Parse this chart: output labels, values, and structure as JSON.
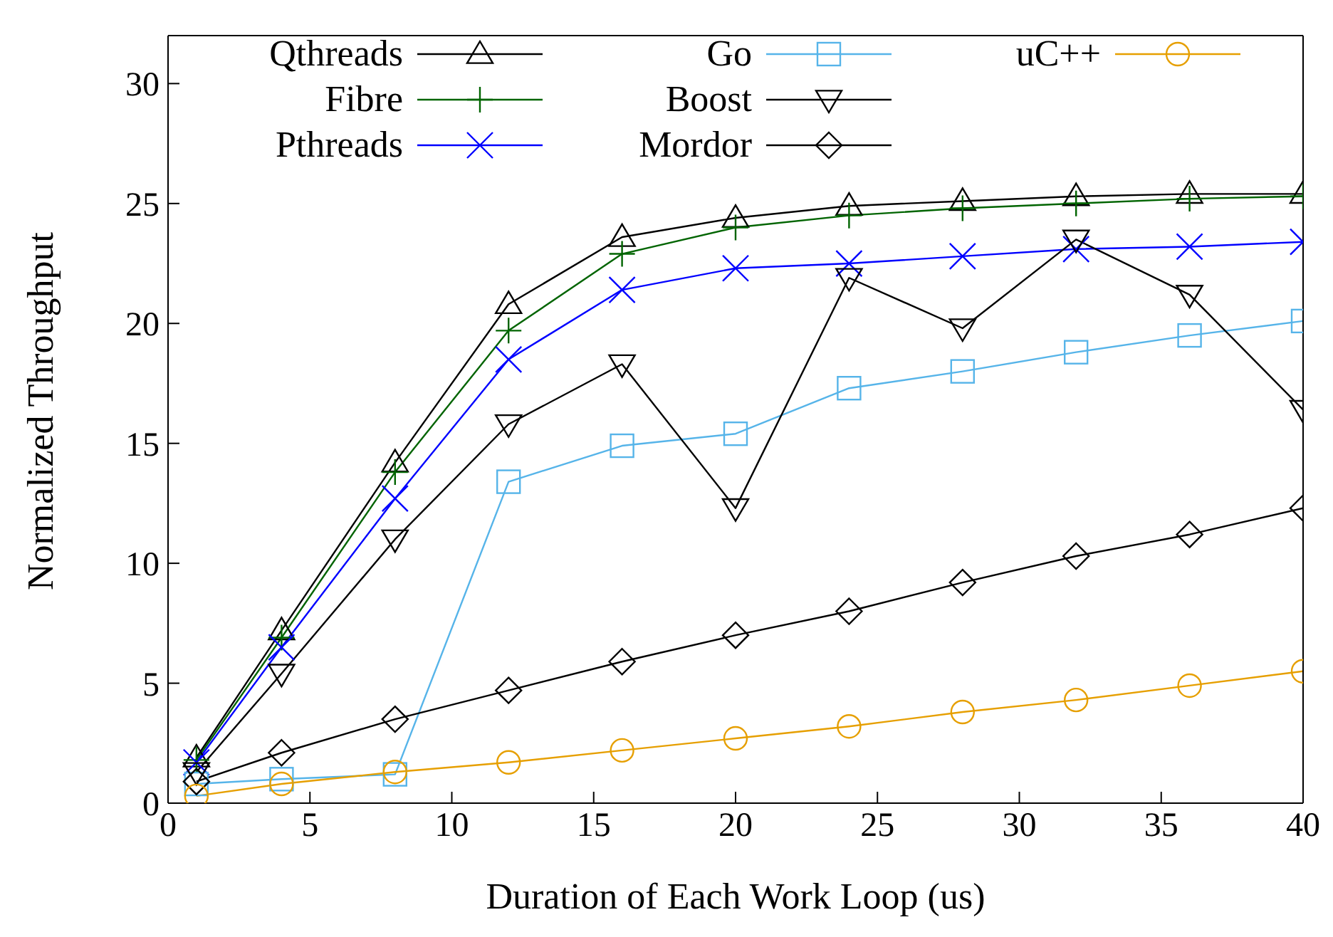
{
  "chart_data": {
    "type": "line",
    "xlabel": "Duration of Each Work Loop (us)",
    "ylabel": "Normalized Throughput",
    "x": [
      1,
      4,
      8,
      12,
      16,
      20,
      24,
      28,
      32,
      36,
      40
    ],
    "xlim": [
      0,
      40
    ],
    "xticks": [
      0,
      5,
      10,
      15,
      20,
      25,
      30,
      35,
      40
    ],
    "ylim": [
      0,
      32
    ],
    "yticks": [
      0,
      5,
      10,
      15,
      20,
      25,
      30
    ],
    "legend": "top",
    "series": [
      {
        "name": "Qthreads",
        "color": "#000000",
        "marker": "triangle",
        "values": [
          1.9,
          7.2,
          14.2,
          20.8,
          23.6,
          24.4,
          24.9,
          25.1,
          25.3,
          25.4,
          25.4
        ]
      },
      {
        "name": "Fibre",
        "color": "#006400",
        "marker": "plus",
        "values": [
          1.8,
          6.9,
          13.8,
          19.7,
          22.9,
          24.0,
          24.5,
          24.8,
          25.0,
          25.2,
          25.3
        ]
      },
      {
        "name": "Pthreads",
        "color": "#0000ff",
        "marker": "cross",
        "values": [
          1.7,
          6.5,
          12.7,
          18.5,
          21.4,
          22.3,
          22.5,
          22.8,
          23.1,
          23.2,
          23.4
        ]
      },
      {
        "name": "Go",
        "color": "#56b4e9",
        "marker": "square",
        "values": [
          0.8,
          1.0,
          1.2,
          13.4,
          14.9,
          15.4,
          17.3,
          18.0,
          18.8,
          19.5,
          20.1
        ]
      },
      {
        "name": "Boost",
        "color": "#000000",
        "marker": "triangle-down",
        "values": [
          1.3,
          5.4,
          11.0,
          15.8,
          18.3,
          12.3,
          21.9,
          19.8,
          23.5,
          21.2,
          16.4
        ]
      },
      {
        "name": "Mordor",
        "color": "#000000",
        "marker": "diamond",
        "values": [
          0.9,
          2.1,
          3.5,
          4.7,
          5.9,
          7.0,
          8.0,
          9.2,
          10.3,
          11.2,
          12.3
        ]
      },
      {
        "name": "uC++",
        "color": "#e69f00",
        "marker": "circle",
        "values": [
          0.3,
          0.8,
          1.3,
          1.7,
          2.2,
          2.7,
          3.2,
          3.8,
          4.3,
          4.9,
          5.5
        ]
      }
    ]
  }
}
